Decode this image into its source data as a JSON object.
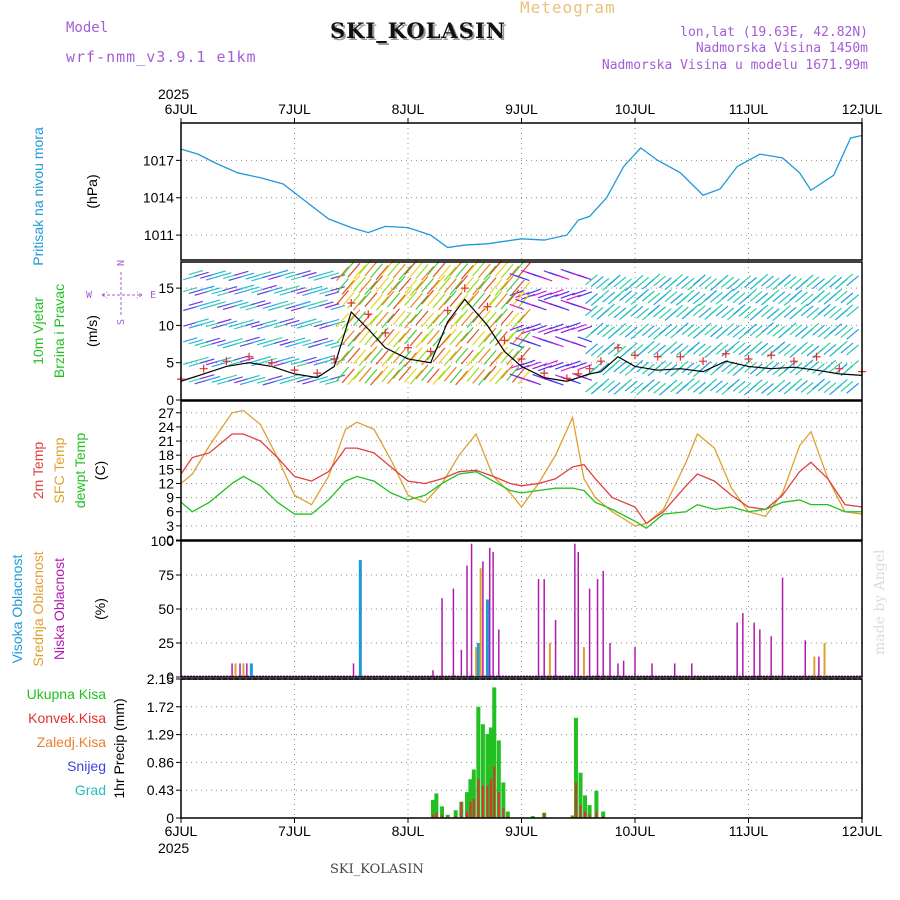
{
  "header": {
    "title": "SKI_KOLASIN",
    "subtitle": "Meteogram",
    "model_label": "Model",
    "model_name": "wrf-nmm_v3.9.1 e1km",
    "info": [
      "lon,lat (19.63E, 42.82N)",
      "Nadmorska Visina 1450m",
      "Nadmorska Visina u modelu 1671.99m"
    ],
    "credit": "made by Angel",
    "footer": "SKI_KOLASIN"
  },
  "colors": {
    "pressure": "#1f9ad8",
    "wind_speed": "#000000",
    "wind_gust": "#e03030",
    "temp_2m": "#e04040",
    "temp_sfc": "#e0a030",
    "temp_dew": "#22c022",
    "cloud_high": "#1f9ad8",
    "cloud_mid": "#e0a030",
    "cloud_low": "#b01ab0",
    "precip_total": "#22c022",
    "precip_conv": "#e03030",
    "precip_frozen": "#e88030",
    "precip_snow": "#4040e0",
    "precip_graupel": "#20c0c0"
  },
  "chart_data": [
    {
      "type": "line",
      "id": "pressure",
      "ylabel_1": "Pritisak na nivou mora",
      "ylabel_2": "(hPa)",
      "xlabel_year": "2025",
      "x_ticks": [
        "6JUL",
        "7JUL",
        "8JUL",
        "9JUL",
        "10JUL",
        "11JUL",
        "12JUL"
      ],
      "y_ticks": [
        1011,
        1014,
        1017
      ],
      "ylim": [
        1009,
        1020
      ],
      "grid": true,
      "x": [
        6.0,
        6.15,
        6.3,
        6.5,
        6.7,
        6.9,
        7.1,
        7.3,
        7.5,
        7.65,
        7.8,
        8.0,
        8.2,
        8.35,
        8.5,
        8.7,
        8.85,
        9.0,
        9.2,
        9.4,
        9.5,
        9.6,
        9.75,
        9.9,
        10.05,
        10.2,
        10.4,
        10.6,
        10.75,
        10.9,
        11.1,
        11.3,
        11.45,
        11.55,
        11.75,
        11.9,
        12.0
      ],
      "y": [
        1017.9,
        1017.5,
        1016.8,
        1016.0,
        1015.6,
        1015.1,
        1013.7,
        1012.3,
        1011.6,
        1011.2,
        1011.7,
        1011.6,
        1011.0,
        1010.0,
        1010.2,
        1010.3,
        1010.5,
        1010.7,
        1010.6,
        1011.0,
        1012.2,
        1012.5,
        1014.0,
        1016.5,
        1018.0,
        1017.0,
        1016.0,
        1014.2,
        1014.7,
        1016.5,
        1017.5,
        1017.2,
        1016.0,
        1014.6,
        1015.8,
        1018.8,
        1019.0
      ],
      "series": [
        {
          "name": "Pritisak na nivou mora"
        }
      ]
    },
    {
      "type": "line",
      "id": "wind",
      "ylabel_1": "10m Vjetar",
      "ylabel_2": "Brzina i Pravac",
      "ylabel_3": "(m/s)",
      "compass": {
        "n": "N",
        "w": "W",
        "e": "E",
        "s": "S"
      },
      "y_ticks": [
        0,
        5,
        10,
        15
      ],
      "ylim": [
        0,
        18.5
      ],
      "grid": true,
      "x": [
        6.0,
        6.2,
        6.4,
        6.6,
        6.8,
        7.0,
        7.2,
        7.35,
        7.5,
        7.65,
        7.8,
        8.0,
        8.2,
        8.35,
        8.5,
        8.7,
        8.85,
        9.0,
        9.2,
        9.4,
        9.5,
        9.6,
        9.7,
        9.85,
        10.0,
        10.2,
        10.4,
        10.6,
        10.8,
        11.0,
        11.2,
        11.4,
        11.6,
        11.8,
        12.0
      ],
      "speed": [
        2.5,
        3.5,
        4.5,
        5.0,
        4.5,
        3.5,
        3.0,
        4.5,
        11.8,
        9.5,
        7.0,
        5.5,
        5.0,
        10.5,
        13.5,
        10.0,
        6.5,
        4.5,
        3.0,
        2.5,
        3.0,
        3.5,
        3.8,
        5.8,
        4.5,
        4.0,
        4.2,
        3.8,
        5.2,
        4.5,
        4.2,
        4.4,
        4.0,
        3.5,
        3.3
      ],
      "gust": [
        2.8,
        4.2,
        5.2,
        5.8,
        5.0,
        4.0,
        3.6,
        5.5,
        13.0,
        11.5,
        9.0,
        7.0,
        6.5,
        12.0,
        15.0,
        12.5,
        8.0,
        5.5,
        3.6,
        2.9,
        3.5,
        4.2,
        5.2,
        7.0,
        6.0,
        5.8,
        5.8,
        5.2,
        6.2,
        5.5,
        6.0,
        5.2,
        5.8,
        4.2,
        3.8
      ]
    },
    {
      "type": "line",
      "id": "temperature",
      "ylabel_1": "2m Temp",
      "ylabel_2": "SFC Temp",
      "ylabel_3": "dewpt Temp",
      "ylabel_4": "(C)",
      "y_ticks": [
        0,
        3,
        6,
        9,
        12,
        15,
        18,
        21,
        24,
        27
      ],
      "ylim": [
        0,
        29.5
      ],
      "grid": true,
      "x": [
        6.0,
        6.1,
        6.25,
        6.45,
        6.55,
        6.7,
        6.85,
        7.0,
        7.15,
        7.3,
        7.45,
        7.55,
        7.7,
        7.85,
        8.0,
        8.15,
        8.3,
        8.45,
        8.6,
        8.75,
        8.9,
        9.0,
        9.15,
        9.3,
        9.45,
        9.55,
        9.65,
        9.8,
        10.0,
        10.1,
        10.25,
        10.45,
        10.55,
        10.7,
        10.85,
        11.0,
        11.15,
        11.3,
        11.45,
        11.55,
        11.7,
        11.85,
        12.0
      ],
      "series": [
        {
          "name": "2m Temp",
          "values": [
            14.0,
            17.5,
            18.5,
            22.5,
            22.5,
            21.0,
            17.5,
            13.5,
            12.5,
            14.5,
            19.5,
            19.5,
            18.5,
            15.5,
            12.5,
            12.0,
            13.0,
            14.5,
            14.8,
            13.5,
            12.0,
            11.5,
            12.0,
            13.0,
            15.5,
            16.0,
            13.0,
            9.0,
            7.0,
            3.5,
            6.0,
            11.5,
            14.0,
            12.5,
            9.5,
            7.0,
            6.5,
            9.5,
            14.5,
            16.5,
            13.0,
            7.5,
            7.0
          ]
        },
        {
          "name": "SFC Temp",
          "values": [
            12.0,
            14.0,
            20.0,
            27.0,
            27.5,
            24.5,
            17.5,
            9.5,
            7.5,
            13.5,
            23.5,
            25.0,
            23.5,
            17.0,
            9.5,
            8.0,
            12.0,
            18.0,
            22.5,
            13.5,
            10.0,
            7.0,
            12.0,
            18.0,
            26.0,
            13.0,
            9.0,
            6.0,
            3.0,
            3.5,
            6.5,
            16.5,
            22.5,
            19.5,
            11.0,
            6.0,
            5.0,
            10.0,
            20.0,
            23.0,
            13.0,
            6.0,
            5.5
          ]
        },
        {
          "name": "dewpt Temp",
          "values": [
            8.0,
            6.0,
            8.0,
            12.0,
            13.5,
            11.5,
            8.0,
            5.5,
            5.5,
            8.5,
            12.5,
            13.5,
            12.5,
            10.0,
            8.5,
            9.5,
            12.0,
            14.0,
            14.5,
            12.5,
            10.5,
            10.0,
            10.5,
            11.0,
            11.0,
            10.5,
            8.0,
            6.5,
            4.0,
            2.5,
            5.5,
            6.0,
            7.5,
            6.5,
            7.0,
            6.0,
            6.5,
            8.0,
            8.5,
            7.5,
            7.5,
            6.0,
            6.0
          ]
        }
      ]
    },
    {
      "type": "bar",
      "id": "clouds",
      "ylabel_1": "Visoka Oblacnost",
      "ylabel_2": "Srednja Oblacnost",
      "ylabel_3": "Niska Oblacnost",
      "ylabel_4": "(%)",
      "y_ticks": [
        0,
        25,
        50,
        75,
        100
      ],
      "ylim": [
        0,
        100
      ],
      "grid": true,
      "bars": [
        {
          "x": 6.45,
          "cat": "low",
          "v": 10
        },
        {
          "x": 6.48,
          "cat": "mid",
          "v": 10
        },
        {
          "x": 6.52,
          "cat": "low",
          "v": 10
        },
        {
          "x": 6.55,
          "cat": "mid",
          "v": 10
        },
        {
          "x": 6.58,
          "cat": "low",
          "v": 10
        },
        {
          "x": 6.62,
          "cat": "high",
          "v": 10
        },
        {
          "x": 7.52,
          "cat": "low",
          "v": 10
        },
        {
          "x": 7.58,
          "cat": "high",
          "v": 86
        },
        {
          "x": 8.22,
          "cat": "low",
          "v": 5
        },
        {
          "x": 8.3,
          "cat": "low",
          "v": 58
        },
        {
          "x": 8.4,
          "cat": "low",
          "v": 65
        },
        {
          "x": 8.47,
          "cat": "low",
          "v": 20
        },
        {
          "x": 8.52,
          "cat": "low",
          "v": 82
        },
        {
          "x": 8.56,
          "cat": "low",
          "v": 98
        },
        {
          "x": 8.6,
          "cat": "mid",
          "v": 22
        },
        {
          "x": 8.62,
          "cat": "high",
          "v": 25
        },
        {
          "x": 8.64,
          "cat": "mid",
          "v": 80
        },
        {
          "x": 8.66,
          "cat": "low",
          "v": 85
        },
        {
          "x": 8.7,
          "cat": "high",
          "v": 57
        },
        {
          "x": 8.72,
          "cat": "low",
          "v": 95
        },
        {
          "x": 8.75,
          "cat": "low",
          "v": 92
        },
        {
          "x": 8.8,
          "cat": "low",
          "v": 35
        },
        {
          "x": 9.15,
          "cat": "low",
          "v": 72
        },
        {
          "x": 9.2,
          "cat": "low",
          "v": 72
        },
        {
          "x": 9.25,
          "cat": "mid",
          "v": 25
        },
        {
          "x": 9.3,
          "cat": "low",
          "v": 42
        },
        {
          "x": 9.47,
          "cat": "low",
          "v": 98
        },
        {
          "x": 9.5,
          "cat": "low",
          "v": 92
        },
        {
          "x": 9.55,
          "cat": "mid",
          "v": 22
        },
        {
          "x": 9.6,
          "cat": "low",
          "v": 65
        },
        {
          "x": 9.67,
          "cat": "low",
          "v": 72
        },
        {
          "x": 9.72,
          "cat": "low",
          "v": 78
        },
        {
          "x": 9.78,
          "cat": "low",
          "v": 25
        },
        {
          "x": 9.85,
          "cat": "low",
          "v": 10
        },
        {
          "x": 9.9,
          "cat": "low",
          "v": 12
        },
        {
          "x": 10.0,
          "cat": "low",
          "v": 22
        },
        {
          "x": 10.15,
          "cat": "low",
          "v": 10
        },
        {
          "x": 10.35,
          "cat": "low",
          "v": 10
        },
        {
          "x": 10.5,
          "cat": "low",
          "v": 10
        },
        {
          "x": 10.9,
          "cat": "low",
          "v": 40
        },
        {
          "x": 10.95,
          "cat": "low",
          "v": 47
        },
        {
          "x": 11.05,
          "cat": "low",
          "v": 40
        },
        {
          "x": 11.1,
          "cat": "low",
          "v": 35
        },
        {
          "x": 11.2,
          "cat": "low",
          "v": 30
        },
        {
          "x": 11.3,
          "cat": "low",
          "v": 73
        },
        {
          "x": 11.5,
          "cat": "low",
          "v": 27
        },
        {
          "x": 11.58,
          "cat": "mid",
          "v": 15
        },
        {
          "x": 11.62,
          "cat": "low",
          "v": 15
        },
        {
          "x": 11.67,
          "cat": "mid",
          "v": 25
        }
      ]
    },
    {
      "type": "bar",
      "id": "precip",
      "ylabel": "1hr Precip (mm)",
      "legend": [
        "Ukupna Kisa",
        "Konvek.Kisa",
        "Zaledj.Kisa",
        "Snijeg",
        "Grad"
      ],
      "xlabel_year": "2025",
      "y_ticks": [
        0,
        0.43,
        0.86,
        1.29,
        1.72,
        2.15
      ],
      "ylim": [
        0,
        2.15
      ],
      "grid": true,
      "bars": [
        {
          "x": 8.22,
          "total": 0.28,
          "conv": 0.05
        },
        {
          "x": 8.25,
          "total": 0.38,
          "conv": 0.08
        },
        {
          "x": 8.3,
          "total": 0.18,
          "conv": 0.05
        },
        {
          "x": 8.35,
          "total": 0.05,
          "conv": 0.02
        },
        {
          "x": 8.42,
          "total": 0.12,
          "conv": 0.03
        },
        {
          "x": 8.47,
          "total": 0.25,
          "conv": 0.25
        },
        {
          "x": 8.52,
          "total": 0.4,
          "conv": 0.1
        },
        {
          "x": 8.55,
          "total": 0.6,
          "conv": 0.25
        },
        {
          "x": 8.58,
          "total": 0.75,
          "conv": 0.3
        },
        {
          "x": 8.62,
          "total": 1.72,
          "conv": 0.6
        },
        {
          "x": 8.66,
          "total": 1.45,
          "conv": 0.5
        },
        {
          "x": 8.7,
          "total": 1.3,
          "conv": 0.5
        },
        {
          "x": 8.73,
          "total": 1.4,
          "conv": 0.6
        },
        {
          "x": 8.76,
          "total": 2.02,
          "conv": 0.8
        },
        {
          "x": 8.8,
          "total": 1.2,
          "conv": 0.4
        },
        {
          "x": 8.84,
          "total": 0.55,
          "conv": 0.15
        },
        {
          "x": 8.88,
          "total": 0.1,
          "conv": 0.03
        },
        {
          "x": 9.1,
          "total": 0.03,
          "conv": 0.01
        },
        {
          "x": 9.2,
          "total": 0.08,
          "conv": 0.08
        },
        {
          "x": 9.45,
          "total": 0.04,
          "conv": 0.02
        },
        {
          "x": 9.48,
          "total": 1.55,
          "conv": 0.55
        },
        {
          "x": 9.52,
          "total": 0.7,
          "conv": 0.2
        },
        {
          "x": 9.56,
          "total": 0.35,
          "conv": 0.1
        },
        {
          "x": 9.6,
          "total": 0.2,
          "conv": 0.06
        },
        {
          "x": 9.66,
          "total": 0.42,
          "conv": 0.1
        },
        {
          "x": 9.72,
          "total": 0.1,
          "conv": 0.03
        }
      ]
    }
  ]
}
